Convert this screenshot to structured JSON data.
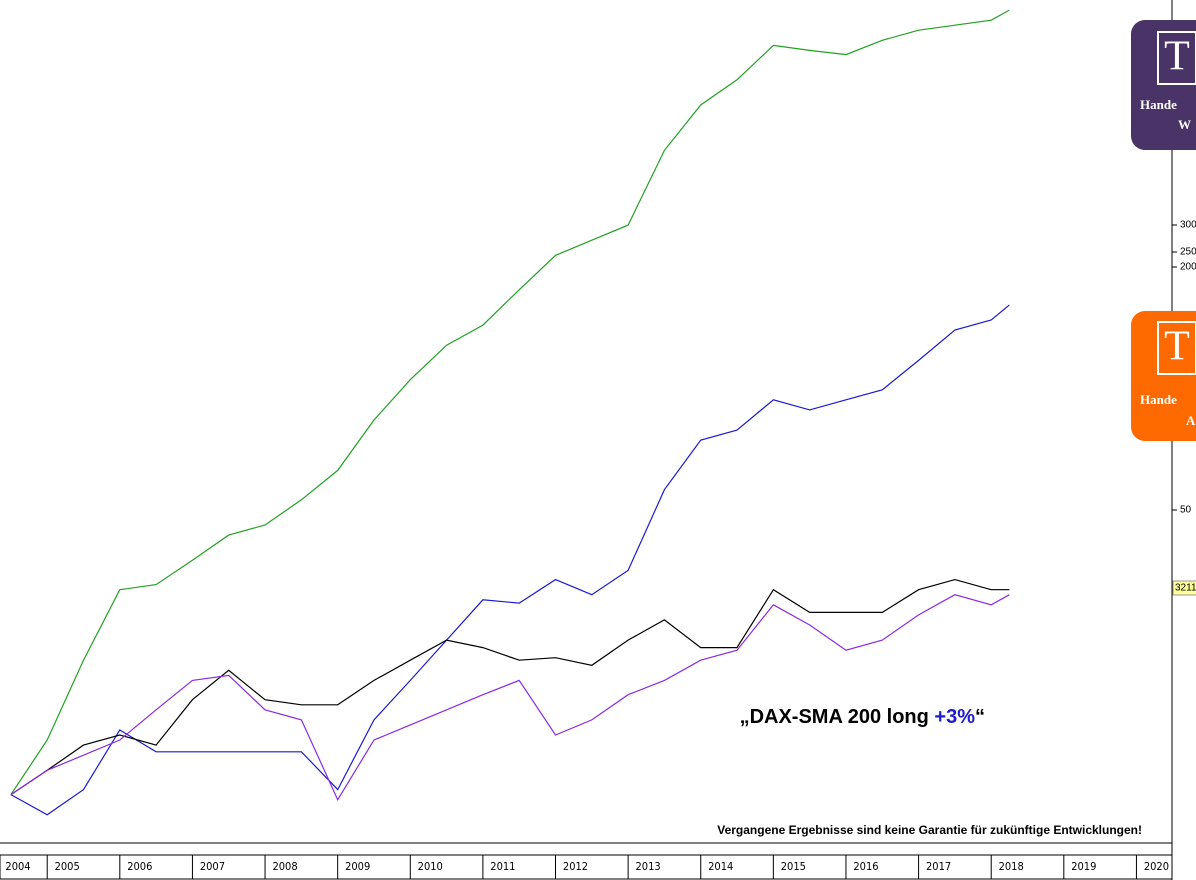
{
  "chart_data": {
    "type": "line",
    "x": [
      2004.5,
      2005.0,
      2005.5,
      2006.0,
      2006.5,
      2007.0,
      2007.5,
      2008.0,
      2008.5,
      2009.0,
      2009.5,
      2010.0,
      2010.5,
      2011.0,
      2011.5,
      2012.0,
      2012.5,
      2013.0,
      2013.5,
      2014.0,
      2014.5,
      2015.0,
      2015.5,
      2016.0,
      2016.5,
      2017.0,
      2017.5,
      2018.0,
      2018.25
    ],
    "series": [
      {
        "color": "#22a022",
        "values": [
          5.4,
          11.9,
          21.4,
          29.8,
          30.4,
          33.3,
          36.3,
          37.5,
          40.5,
          44.0,
          50.0,
          54.8,
          58.9,
          61.3,
          65.5,
          69.6,
          71.4,
          73.2,
          82.1,
          87.5,
          90.5,
          94.6,
          94.0,
          93.5,
          95.2,
          96.4,
          97.0,
          97.6,
          98.8
        ]
      },
      {
        "color": "#1a1ad0",
        "values": [
          5.4,
          3.0,
          6.0,
          13.1,
          10.5,
          10.5,
          10.5,
          10.5,
          10.5,
          6.0,
          14.3,
          19.0,
          23.8,
          28.6,
          28.2,
          31.0,
          29.2,
          32.1,
          41.7,
          47.6,
          48.8,
          52.4,
          51.2,
          52.4,
          53.6,
          57.1,
          60.7,
          61.9,
          63.7
        ]
      },
      {
        "color": "#000000",
        "values": [
          5.4,
          8.3,
          11.3,
          12.5,
          11.3,
          16.7,
          20.2,
          16.7,
          16.1,
          16.1,
          19.0,
          21.4,
          23.8,
          22.9,
          21.4,
          21.7,
          20.8,
          23.8,
          26.2,
          22.9,
          22.9,
          29.8,
          27.1,
          27.1,
          27.1,
          29.8,
          31.0,
          29.8,
          29.8
        ]
      },
      {
        "color": "#8a2be2",
        "values": [
          5.4,
          8.3,
          10.1,
          11.9,
          15.5,
          19.0,
          19.6,
          15.5,
          14.3,
          4.8,
          11.9,
          13.7,
          15.5,
          17.3,
          19.0,
          12.5,
          14.3,
          17.3,
          19.0,
          21.4,
          22.6,
          28.0,
          25.6,
          22.6,
          23.8,
          26.8,
          29.2,
          28.0,
          29.2
        ]
      }
    ],
    "xlim": [
      2004.35,
      2020.6
    ],
    "xticks": [
      2004,
      2005,
      2006,
      2007,
      2008,
      2009,
      2010,
      2011,
      2012,
      2013,
      2014,
      2015,
      2016,
      2017,
      2018,
      2019,
      2020
    ],
    "ylim": [
      0,
      100
    ],
    "annotation": {
      "start": "„DAX-SMA 200 long ",
      "highlight": "+3%",
      "end": "“"
    },
    "footnote": "Vergangene Ergebnisse sind keine Garantie für zukünftige Entwicklungen!",
    "right_axis_fragments": [
      "300",
      "250",
      "200",
      "50"
    ],
    "price_marker": "3211",
    "logos": [
      {
        "letter": "T",
        "line1": "Hande",
        "line2": "W"
      },
      {
        "letter": "T",
        "line1": "Hande",
        "line2": "A"
      }
    ]
  }
}
